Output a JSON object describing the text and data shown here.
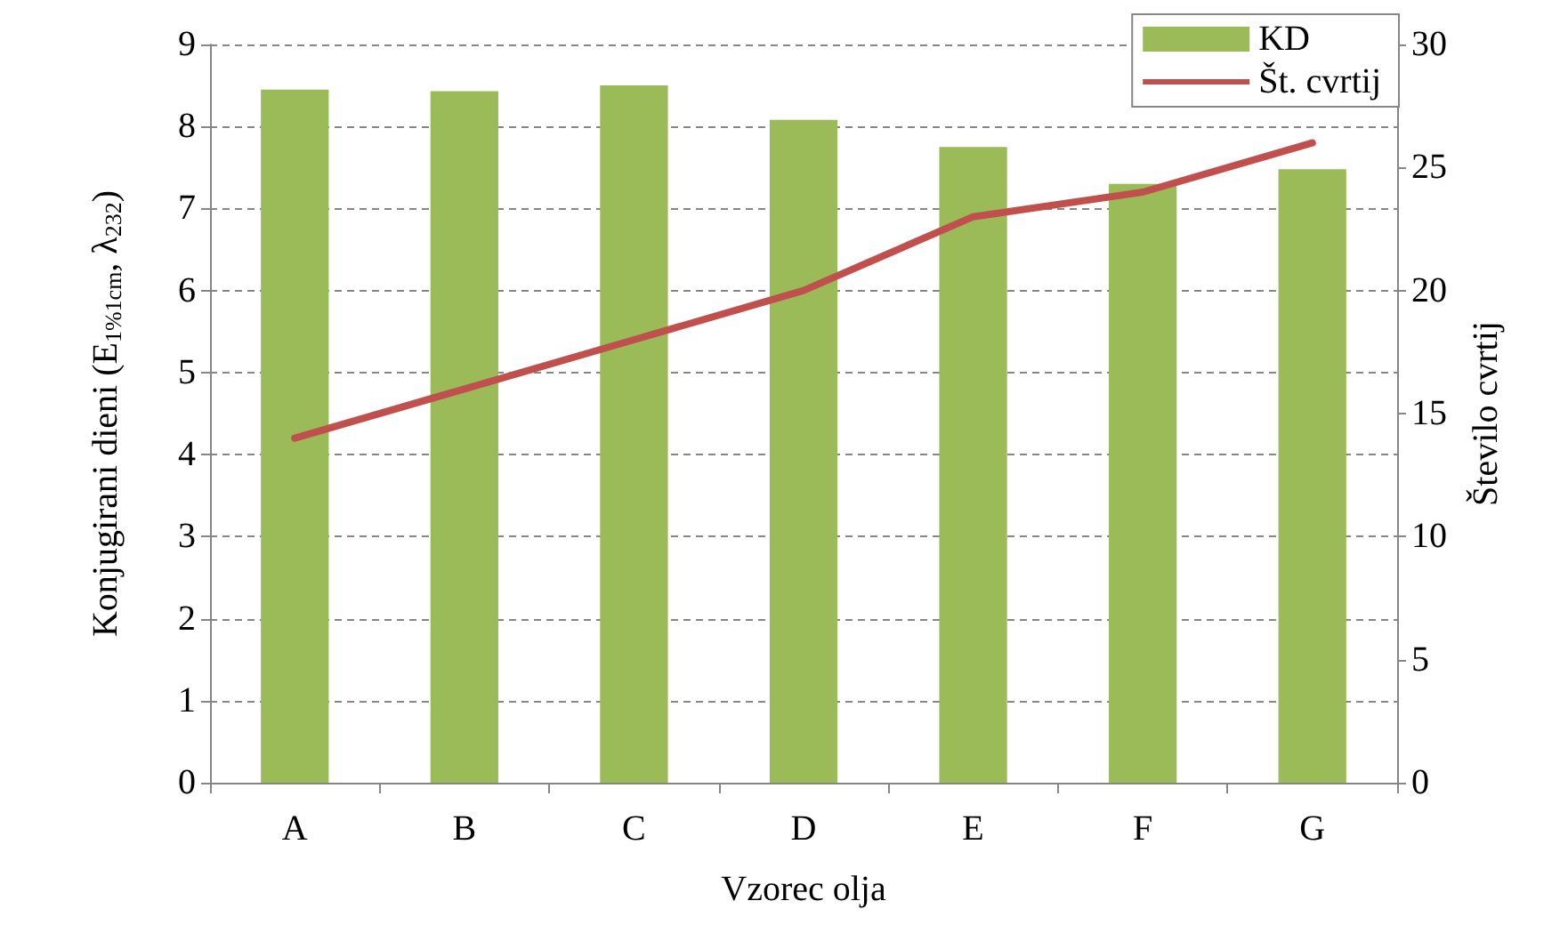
{
  "chart_data": {
    "type": "bar",
    "xlabel": "Vzorec olja",
    "ylabel": "Konjugirani dieni (E$_{1%1cm}$, λ$_{232}$)",
    "y2label": "Število cvrtij",
    "categories": [
      "A",
      "B",
      "C",
      "D",
      "E",
      "F",
      "G"
    ],
    "series": [
      {
        "name": "KD",
        "color": "#9bbb59",
        "values": [
          8.45,
          8.43,
          8.5,
          8.08,
          7.75,
          7.3,
          7.48
        ]
      },
      {
        "name": "Št. cvrtij",
        "type": "line",
        "axis": "y2",
        "color": "#c0504d",
        "marker": "none",
        "values": [
          14,
          16,
          18,
          20,
          23,
          24,
          26
        ]
      }
    ],
    "ylim": [
      0,
      9
    ],
    "yticks": [
      0,
      1,
      2,
      3,
      4,
      5,
      6,
      7,
      8,
      9
    ],
    "y2lim": [
      0,
      30
    ],
    "y2ticks": [
      0,
      5,
      10,
      15,
      20,
      25,
      30
    ],
    "grid": "y",
    "legend": "top right"
  }
}
